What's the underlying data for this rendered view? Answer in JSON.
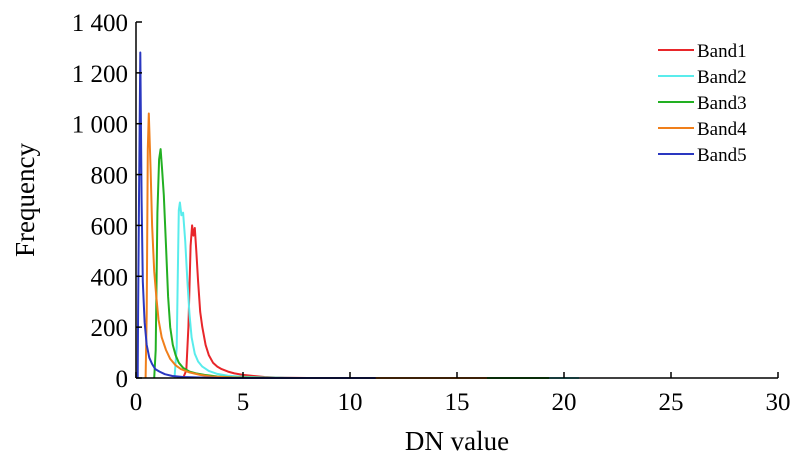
{
  "chart_data": {
    "type": "line",
    "xlabel": "DN value",
    "ylabel": "Frequency",
    "xlim": [
      0,
      30
    ],
    "ylim": [
      0,
      1400
    ],
    "xticks": [
      0,
      5,
      10,
      15,
      20,
      25,
      30
    ],
    "xtick_labels": [
      "0",
      "5",
      "10",
      "15",
      "20",
      "25",
      "30"
    ],
    "yticks": [
      0,
      200,
      400,
      600,
      800,
      1000,
      1200,
      1400
    ],
    "ytick_labels": [
      "0",
      "200",
      "400",
      "600",
      "800",
      "1 000",
      "1 200",
      "1 400"
    ],
    "grid": false,
    "legend_position": "top-right",
    "series": [
      {
        "name": "Band1",
        "color": "#e8262a",
        "points": [
          [
            2.2,
            0
          ],
          [
            2.35,
            30
          ],
          [
            2.45,
            200
          ],
          [
            2.55,
            520
          ],
          [
            2.62,
            600
          ],
          [
            2.68,
            560
          ],
          [
            2.75,
            590
          ],
          [
            2.82,
            500
          ],
          [
            2.9,
            380
          ],
          [
            3.0,
            260
          ],
          [
            3.1,
            200
          ],
          [
            3.25,
            130
          ],
          [
            3.4,
            90
          ],
          [
            3.6,
            60
          ],
          [
            3.8,
            45
          ],
          [
            4.0,
            35
          ],
          [
            4.3,
            25
          ],
          [
            4.6,
            18
          ],
          [
            5.0,
            12
          ],
          [
            5.5,
            8
          ],
          [
            6.0,
            4
          ],
          [
            6.5,
            2
          ],
          [
            7.0,
            1
          ],
          [
            8.0,
            0
          ],
          [
            11.2,
            0
          ]
        ]
      },
      {
        "name": "Band2",
        "color": "#59ecec",
        "points": [
          [
            1.8,
            0
          ],
          [
            1.9,
            120
          ],
          [
            1.95,
            380
          ],
          [
            2.0,
            660
          ],
          [
            2.05,
            690
          ],
          [
            2.12,
            640
          ],
          [
            2.2,
            650
          ],
          [
            2.3,
            540
          ],
          [
            2.4,
            380
          ],
          [
            2.5,
            250
          ],
          [
            2.6,
            160
          ],
          [
            2.75,
            95
          ],
          [
            2.9,
            65
          ],
          [
            3.1,
            45
          ],
          [
            3.4,
            28
          ],
          [
            3.8,
            16
          ],
          [
            4.3,
            9
          ],
          [
            5.0,
            5
          ],
          [
            6.0,
            2
          ],
          [
            7.5,
            0
          ],
          [
            20.7,
            0
          ]
        ]
      },
      {
        "name": "Band3",
        "color": "#22b022",
        "points": [
          [
            0.85,
            0
          ],
          [
            0.92,
            110
          ],
          [
            1.0,
            650
          ],
          [
            1.08,
            860
          ],
          [
            1.15,
            900
          ],
          [
            1.22,
            820
          ],
          [
            1.3,
            720
          ],
          [
            1.4,
            520
          ],
          [
            1.5,
            320
          ],
          [
            1.6,
            200
          ],
          [
            1.72,
            130
          ],
          [
            1.85,
            90
          ],
          [
            2.0,
            60
          ],
          [
            2.2,
            40
          ],
          [
            2.5,
            25
          ],
          [
            2.8,
            18
          ],
          [
            3.2,
            12
          ],
          [
            3.8,
            6
          ],
          [
            4.5,
            3
          ],
          [
            5.5,
            1
          ],
          [
            7.0,
            0
          ],
          [
            19.3,
            0
          ]
        ]
      },
      {
        "name": "Band4",
        "color": "#f07f1a",
        "points": [
          [
            0.45,
            0
          ],
          [
            0.5,
            250
          ],
          [
            0.55,
            900
          ],
          [
            0.6,
            1040
          ],
          [
            0.68,
            820
          ],
          [
            0.75,
            600
          ],
          [
            0.85,
            420
          ],
          [
            0.95,
            320
          ],
          [
            1.05,
            230
          ],
          [
            1.2,
            160
          ],
          [
            1.4,
            110
          ],
          [
            1.6,
            75
          ],
          [
            1.85,
            50
          ],
          [
            2.1,
            35
          ],
          [
            2.5,
            22
          ],
          [
            3.0,
            12
          ],
          [
            3.5,
            6
          ],
          [
            4.2,
            3
          ],
          [
            5.0,
            1
          ],
          [
            6.0,
            0
          ],
          [
            16.4,
            0
          ]
        ]
      },
      {
        "name": "Band5",
        "color": "#2a37c0",
        "points": [
          [
            0.08,
            0
          ],
          [
            0.1,
            260
          ],
          [
            0.14,
            700
          ],
          [
            0.2,
            1280
          ],
          [
            0.26,
            700
          ],
          [
            0.32,
            380
          ],
          [
            0.4,
            220
          ],
          [
            0.5,
            130
          ],
          [
            0.62,
            80
          ],
          [
            0.75,
            55
          ],
          [
            0.9,
            35
          ],
          [
            1.1,
            25
          ],
          [
            1.35,
            15
          ],
          [
            1.7,
            8
          ],
          [
            2.2,
            4
          ],
          [
            3.0,
            2
          ],
          [
            4.0,
            0
          ],
          [
            11.2,
            0
          ]
        ]
      }
    ]
  }
}
